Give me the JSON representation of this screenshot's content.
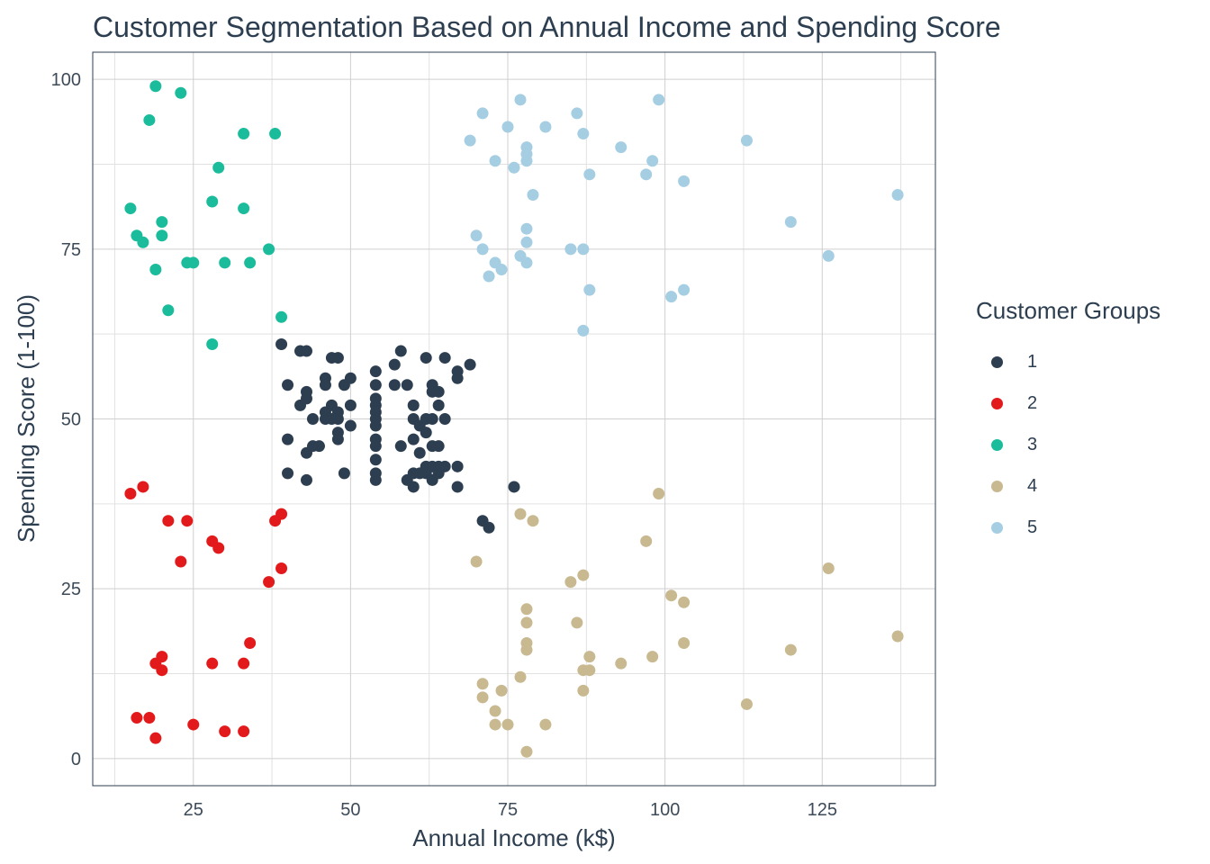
{
  "chart_data": {
    "type": "scatter",
    "title": "Customer Segmentation Based on Annual Income and Spending Score",
    "xlabel": "Annual Income (k$)",
    "ylabel": "Spending Score (1-100)",
    "xlim": [
      9,
      143
    ],
    "ylim": [
      -4,
      104
    ],
    "xticks": [
      25,
      50,
      75,
      100,
      125
    ],
    "yticks": [
      0,
      25,
      50,
      75,
      100
    ],
    "grid": true,
    "legend_title": "Customer Groups",
    "legend_position": "right",
    "series": [
      {
        "name": "1",
        "color": "#2c3e50",
        "points": [
          [
            39,
            61
          ],
          [
            42,
            60
          ],
          [
            43,
            60
          ],
          [
            47,
            59
          ],
          [
            48,
            59
          ],
          [
            58,
            60
          ],
          [
            57,
            58
          ],
          [
            62,
            59
          ],
          [
            65,
            59
          ],
          [
            69,
            58
          ],
          [
            67,
            57
          ],
          [
            67,
            56
          ],
          [
            54,
            57
          ],
          [
            46,
            56
          ],
          [
            46,
            55
          ],
          [
            50,
            56
          ],
          [
            49,
            55
          ],
          [
            54,
            55
          ],
          [
            59,
            55
          ],
          [
            57,
            55
          ],
          [
            63,
            55
          ],
          [
            63,
            54
          ],
          [
            64,
            54
          ],
          [
            40,
            55
          ],
          [
            43,
            54
          ],
          [
            43,
            53
          ],
          [
            42,
            52
          ],
          [
            47,
            52
          ],
          [
            46,
            51
          ],
          [
            48,
            51
          ],
          [
            50,
            52
          ],
          [
            54,
            53
          ],
          [
            54,
            52
          ],
          [
            60,
            52
          ],
          [
            64,
            52
          ],
          [
            44,
            50
          ],
          [
            46,
            50
          ],
          [
            47,
            50
          ],
          [
            48,
            50
          ],
          [
            50,
            49
          ],
          [
            54,
            51
          ],
          [
            54,
            50
          ],
          [
            60,
            50
          ],
          [
            62,
            50
          ],
          [
            63,
            50
          ],
          [
            65,
            50
          ],
          [
            61,
            49
          ],
          [
            62,
            48
          ],
          [
            60,
            47
          ],
          [
            54,
            49
          ],
          [
            54,
            47
          ],
          [
            48,
            48
          ],
          [
            48,
            47
          ],
          [
            40,
            47
          ],
          [
            44,
            46
          ],
          [
            43,
            45
          ],
          [
            45,
            46
          ],
          [
            54,
            46
          ],
          [
            58,
            46
          ],
          [
            63,
            46
          ],
          [
            64,
            46
          ],
          [
            61,
            45
          ],
          [
            54,
            44
          ],
          [
            63,
            43
          ],
          [
            64,
            43
          ],
          [
            65,
            43
          ],
          [
            67,
            43
          ],
          [
            62,
            43
          ],
          [
            40,
            42
          ],
          [
            49,
            42
          ],
          [
            54,
            42
          ],
          [
            59,
            41
          ],
          [
            60,
            42
          ],
          [
            61,
            42
          ],
          [
            62,
            42
          ],
          [
            63,
            41
          ],
          [
            64,
            42
          ],
          [
            54,
            41
          ],
          [
            60,
            40
          ],
          [
            43,
            41
          ],
          [
            67,
            40
          ],
          [
            76,
            40
          ],
          [
            71,
            35
          ],
          [
            72,
            34
          ]
        ]
      },
      {
        "name": "2",
        "color": "#e31a1c",
        "points": [
          [
            15,
            39
          ],
          [
            17,
            40
          ],
          [
            21,
            35
          ],
          [
            24,
            35
          ],
          [
            28,
            32
          ],
          [
            29,
            31
          ],
          [
            23,
            29
          ],
          [
            38,
            35
          ],
          [
            39,
            36
          ],
          [
            39,
            28
          ],
          [
            37,
            26
          ],
          [
            34,
            17
          ],
          [
            20,
            15
          ],
          [
            19,
            14
          ],
          [
            20,
            13
          ],
          [
            28,
            14
          ],
          [
            33,
            14
          ],
          [
            16,
            6
          ],
          [
            18,
            6
          ],
          [
            25,
            5
          ],
          [
            30,
            4
          ],
          [
            33,
            4
          ],
          [
            19,
            3
          ]
        ]
      },
      {
        "name": "3",
        "color": "#1abc9c",
        "points": [
          [
            19,
            99
          ],
          [
            23,
            98
          ],
          [
            18,
            94
          ],
          [
            33,
            92
          ],
          [
            38,
            92
          ],
          [
            29,
            87
          ],
          [
            28,
            82
          ],
          [
            33,
            81
          ],
          [
            15,
            81
          ],
          [
            20,
            79
          ],
          [
            16,
            77
          ],
          [
            20,
            77
          ],
          [
            17,
            76
          ],
          [
            37,
            75
          ],
          [
            19,
            72
          ],
          [
            24,
            73
          ],
          [
            25,
            73
          ],
          [
            30,
            73
          ],
          [
            34,
            73
          ],
          [
            21,
            66
          ],
          [
            39,
            65
          ],
          [
            28,
            61
          ]
        ]
      },
      {
        "name": "4",
        "color": "#c8b991",
        "points": [
          [
            99,
            39
          ],
          [
            77,
            36
          ],
          [
            79,
            35
          ],
          [
            97,
            32
          ],
          [
            70,
            29
          ],
          [
            126,
            28
          ],
          [
            87,
            27
          ],
          [
            85,
            26
          ],
          [
            101,
            24
          ],
          [
            103,
            23
          ],
          [
            78,
            22
          ],
          [
            78,
            20
          ],
          [
            86,
            20
          ],
          [
            137,
            18
          ],
          [
            78,
            17
          ],
          [
            103,
            17
          ],
          [
            78,
            16
          ],
          [
            120,
            16
          ],
          [
            88,
            15
          ],
          [
            98,
            15
          ],
          [
            93,
            14
          ],
          [
            87,
            13
          ],
          [
            88,
            13
          ],
          [
            77,
            12
          ],
          [
            71,
            11
          ],
          [
            74,
            10
          ],
          [
            87,
            10
          ],
          [
            71,
            9
          ],
          [
            113,
            8
          ],
          [
            73,
            7
          ],
          [
            73,
            5
          ],
          [
            75,
            5
          ],
          [
            81,
            5
          ],
          [
            78,
            1
          ]
        ]
      },
      {
        "name": "5",
        "color": "#a6cee3",
        "points": [
          [
            77,
            97
          ],
          [
            99,
            97
          ],
          [
            71,
            95
          ],
          [
            86,
            95
          ],
          [
            75,
            93
          ],
          [
            81,
            93
          ],
          [
            87,
            92
          ],
          [
            69,
            91
          ],
          [
            113,
            91
          ],
          [
            78,
            90
          ],
          [
            93,
            90
          ],
          [
            78,
            89
          ],
          [
            73,
            88
          ],
          [
            78,
            88
          ],
          [
            98,
            88
          ],
          [
            76,
            87
          ],
          [
            88,
            86
          ],
          [
            97,
            86
          ],
          [
            103,
            85
          ],
          [
            79,
            83
          ],
          [
            137,
            83
          ],
          [
            120,
            79
          ],
          [
            78,
            78
          ],
          [
            70,
            77
          ],
          [
            78,
            76
          ],
          [
            71,
            75
          ],
          [
            85,
            75
          ],
          [
            87,
            75
          ],
          [
            77,
            74
          ],
          [
            126,
            74
          ],
          [
            73,
            73
          ],
          [
            78,
            73
          ],
          [
            74,
            72
          ],
          [
            72,
            71
          ],
          [
            88,
            69
          ],
          [
            103,
            69
          ],
          [
            101,
            68
          ],
          [
            87,
            63
          ]
        ]
      }
    ]
  }
}
